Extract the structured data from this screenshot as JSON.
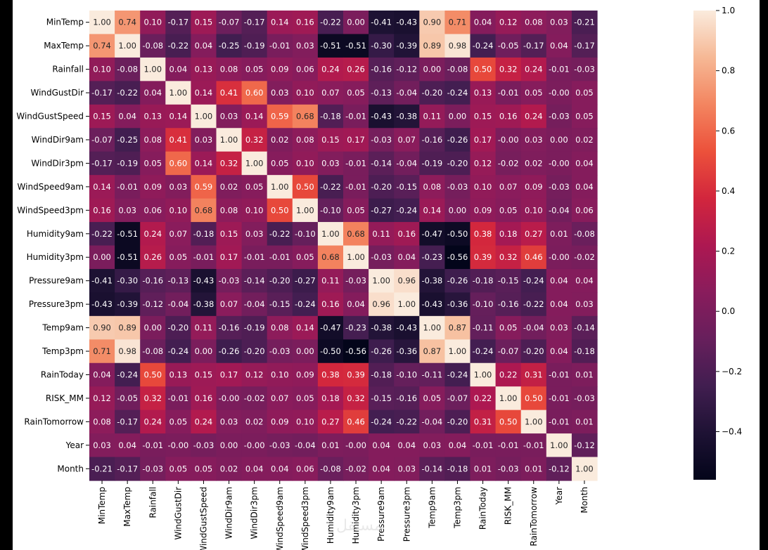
{
  "chart_data": {
    "type": "heatmap",
    "title": "",
    "xlabel": "",
    "ylabel": "",
    "variables": [
      "MinTemp",
      "MaxTemp",
      "Rainfall",
      "WindGustDir",
      "WindGustSpeed",
      "WindDir9am",
      "WindDir3pm",
      "WindSpeed9am",
      "WindSpeed3pm",
      "Humidity9am",
      "Humidity3pm",
      "Pressure9am",
      "Pressure3pm",
      "Temp9am",
      "Temp3pm",
      "RainToday",
      "RISK_MM",
      "RainTomorrow",
      "Year",
      "Month"
    ],
    "values": [
      [
        1.0,
        0.74,
        0.1,
        -0.17,
        0.15,
        -0.07,
        -0.17,
        0.14,
        0.16,
        -0.22,
        0.0,
        -0.41,
        -0.43,
        0.9,
        0.71,
        0.04,
        0.12,
        0.08,
        0.03,
        -0.21
      ],
      [
        0.74,
        1.0,
        -0.08,
        -0.22,
        0.04,
        -0.25,
        -0.19,
        -0.01,
        0.03,
        -0.51,
        -0.51,
        -0.3,
        -0.39,
        0.89,
        0.98,
        -0.24,
        -0.05,
        -0.17,
        0.04,
        -0.17
      ],
      [
        0.1,
        -0.08,
        1.0,
        0.04,
        0.13,
        0.08,
        0.05,
        0.09,
        0.06,
        0.24,
        0.26,
        -0.16,
        -0.12,
        0.0,
        -0.08,
        0.5,
        0.32,
        0.24,
        -0.01,
        -0.03
      ],
      [
        -0.17,
        -0.22,
        0.04,
        1.0,
        0.14,
        0.41,
        0.6,
        0.03,
        0.1,
        0.07,
        0.05,
        -0.13,
        -0.04,
        -0.2,
        -0.24,
        0.13,
        -0.01,
        0.05,
        -0.0,
        0.05
      ],
      [
        0.15,
        0.04,
        0.13,
        0.14,
        1.0,
        0.03,
        0.14,
        0.59,
        0.68,
        -0.18,
        -0.01,
        -0.43,
        -0.38,
        0.11,
        0.0,
        0.15,
        0.16,
        0.24,
        -0.03,
        0.05
      ],
      [
        -0.07,
        -0.25,
        0.08,
        0.41,
        0.03,
        1.0,
        0.32,
        0.02,
        0.08,
        0.15,
        0.17,
        -0.03,
        0.07,
        -0.16,
        -0.26,
        0.17,
        -0.0,
        0.03,
        0.0,
        0.02
      ],
      [
        -0.17,
        -0.19,
        0.05,
        0.6,
        0.14,
        0.32,
        1.0,
        0.05,
        0.1,
        0.03,
        -0.01,
        -0.14,
        -0.04,
        -0.19,
        -0.2,
        0.12,
        -0.02,
        0.02,
        -0.0,
        0.04
      ],
      [
        0.14,
        -0.01,
        0.09,
        0.03,
        0.59,
        0.02,
        0.05,
        1.0,
        0.5,
        -0.22,
        -0.01,
        -0.2,
        -0.15,
        0.08,
        -0.03,
        0.1,
        0.07,
        0.09,
        -0.03,
        0.04
      ],
      [
        0.16,
        0.03,
        0.06,
        0.1,
        0.68,
        0.08,
        0.1,
        0.5,
        1.0,
        -0.1,
        0.05,
        -0.27,
        -0.24,
        0.14,
        0.0,
        0.09,
        0.05,
        0.1,
        -0.04,
        0.06
      ],
      [
        -0.22,
        -0.51,
        0.24,
        0.07,
        -0.18,
        0.15,
        0.03,
        -0.22,
        -0.1,
        1.0,
        0.68,
        0.11,
        0.16,
        -0.47,
        -0.5,
        0.38,
        0.18,
        0.27,
        0.01,
        -0.08
      ],
      [
        0.0,
        -0.51,
        0.26,
        0.05,
        -0.01,
        0.17,
        -0.01,
        -0.01,
        0.05,
        0.68,
        1.0,
        -0.03,
        0.04,
        -0.23,
        -0.56,
        0.39,
        0.32,
        0.46,
        -0.0,
        -0.02
      ],
      [
        -0.41,
        -0.3,
        -0.16,
        -0.13,
        -0.43,
        -0.03,
        -0.14,
        -0.2,
        -0.27,
        0.11,
        -0.03,
        1.0,
        0.96,
        -0.38,
        -0.26,
        -0.18,
        -0.15,
        -0.24,
        0.04,
        0.04
      ],
      [
        -0.43,
        -0.39,
        -0.12,
        -0.04,
        -0.38,
        0.07,
        -0.04,
        -0.15,
        -0.24,
        0.16,
        0.04,
        0.96,
        1.0,
        -0.43,
        -0.36,
        -0.1,
        -0.16,
        -0.22,
        0.04,
        0.03
      ],
      [
        0.9,
        0.89,
        0.0,
        -0.2,
        0.11,
        -0.16,
        -0.19,
        0.08,
        0.14,
        -0.47,
        -0.23,
        -0.38,
        -0.43,
        1.0,
        0.87,
        -0.11,
        0.05,
        -0.04,
        0.03,
        -0.14
      ],
      [
        0.71,
        0.98,
        -0.08,
        -0.24,
        0.0,
        -0.26,
        -0.2,
        -0.03,
        0.0,
        -0.5,
        -0.56,
        -0.26,
        -0.36,
        0.87,
        1.0,
        -0.24,
        -0.07,
        -0.2,
        0.04,
        -0.18
      ],
      [
        0.04,
        -0.24,
        0.5,
        0.13,
        0.15,
        0.17,
        0.12,
        0.1,
        0.09,
        0.38,
        0.39,
        -0.18,
        -0.1,
        -0.11,
        -0.24,
        1.0,
        0.22,
        0.31,
        -0.01,
        0.01
      ],
      [
        0.12,
        -0.05,
        0.32,
        -0.01,
        0.16,
        -0.0,
        -0.02,
        0.07,
        0.05,
        0.18,
        0.32,
        -0.15,
        -0.16,
        0.05,
        -0.07,
        0.22,
        1.0,
        0.5,
        -0.01,
        -0.03
      ],
      [
        0.08,
        -0.17,
        0.24,
        0.05,
        0.24,
        0.03,
        0.02,
        0.09,
        0.1,
        0.27,
        0.46,
        -0.24,
        -0.22,
        -0.04,
        -0.2,
        0.31,
        0.5,
        1.0,
        -0.01,
        0.01
      ],
      [
        0.03,
        0.04,
        -0.01,
        -0.0,
        -0.03,
        0.0,
        -0.0,
        -0.03,
        -0.04,
        0.01,
        -0.0,
        0.04,
        0.04,
        0.03,
        0.04,
        -0.01,
        -0.01,
        -0.01,
        1.0,
        -0.12
      ],
      [
        -0.21,
        -0.17,
        -0.03,
        0.05,
        0.05,
        0.02,
        0.04,
        0.04,
        0.06,
        -0.08,
        -0.02,
        0.04,
        0.03,
        -0.14,
        -0.18,
        0.01,
        -0.03,
        0.01,
        -0.12,
        1.0
      ]
    ],
    "value_format": "2 decimals",
    "colormap": "rocket",
    "vmin": -0.56,
    "vmax": 1.0,
    "colorbar": {
      "ticks": [
        1.0,
        0.8,
        0.6,
        0.4,
        0.2,
        0.0,
        -0.2,
        -0.4
      ],
      "tick_labels": [
        "1.0",
        "0.8",
        "0.6",
        "0.4",
        "0.2",
        "0.0",
        "−0.2",
        "−0.4"
      ]
    },
    "annotations": true
  },
  "watermark": {
    "text": "مستقل"
  }
}
